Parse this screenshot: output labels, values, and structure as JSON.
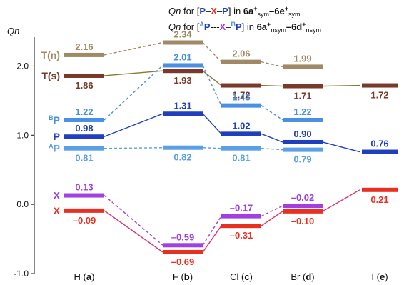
{
  "chart_data": {
    "type": "line",
    "title_line1": {
      "pre": "Qn",
      "mid": " for [",
      "a": "P",
      "b": "–",
      "c": "X",
      "d": "–",
      "e": "P",
      "post": "] in ",
      "bold1": "6a",
      "sup1": "+",
      "sub1": "sym",
      "dash": "–",
      "bold2": "6e",
      "sup2": "+",
      "sub2": "sym"
    },
    "title_line2": {
      "pre": "Qn",
      "mid": " for [",
      "sup_a": "A",
      "a": "P",
      "b": "---",
      "c": "X",
      "d": "–",
      "sup_e": "B",
      "e": "P",
      "post": "] in ",
      "bold1": "6a",
      "sup1": "+",
      "sub1": "nsym",
      "dash": "–",
      "bold2": "6d",
      "sup2": "+",
      "sub2": "nsym"
    },
    "ylabel": "Qn",
    "ylim": [
      -1.0,
      2.5
    ],
    "yticks": [
      -1.0,
      0.0,
      1.0,
      2.0
    ],
    "ytick_labels": [
      "-1.0",
      "0.0",
      "1.0",
      "2.0"
    ],
    "categories": [
      {
        "name": "H",
        "letter": "a"
      },
      {
        "name": "F",
        "letter": "b"
      },
      {
        "name": "Cl",
        "letter": "c"
      },
      {
        "name": "Br",
        "letter": "d"
      },
      {
        "name": "I",
        "letter": "e"
      }
    ],
    "series": [
      {
        "name": "T(n)",
        "color": "#a08a66",
        "dashed": true,
        "values": [
          2.16,
          2.34,
          2.06,
          1.99,
          null
        ],
        "labels": [
          "2.16",
          "2.34",
          "2.06",
          "1.99",
          null
        ],
        "label_pos": "above"
      },
      {
        "name": "T(s)",
        "color": "#7a3a2a",
        "dashed": false,
        "values": [
          1.86,
          1.93,
          1.72,
          1.71,
          1.72
        ],
        "labels": [
          "1.86",
          "1.93",
          "1.72",
          "1.71",
          "1.72"
        ],
        "label_pos": "below",
        "line_color": "#8a7a30"
      },
      {
        "name": "P",
        "sup": "B",
        "color": "#4a90e2",
        "dashed": true,
        "values": [
          1.22,
          2.01,
          1.43,
          1.22,
          null
        ],
        "labels": [
          "1.22",
          "2.01",
          "1.43",
          "1.22",
          null
        ],
        "label_pos": "above"
      },
      {
        "name": "P",
        "color": "#1f3fbf",
        "dashed": false,
        "values": [
          0.98,
          1.31,
          1.02,
          0.9,
          0.76
        ],
        "labels": [
          "0.98",
          "1.31",
          "1.02",
          "0.90",
          "0.76"
        ],
        "label_pos": "above"
      },
      {
        "name": "P",
        "sup": "A",
        "color": "#5aa0e8",
        "dashed": true,
        "values": [
          0.81,
          0.82,
          0.81,
          0.79,
          null
        ],
        "labels": [
          "0.81",
          "0.82",
          "0.81",
          "0.79",
          null
        ],
        "label_pos": "below"
      },
      {
        "name": "X",
        "color": "#a040e0",
        "dashed": true,
        "values": [
          0.13,
          -0.59,
          -0.17,
          -0.02,
          null
        ],
        "labels": [
          "0.13",
          "–0.59",
          "–0.17",
          "–0.02",
          null
        ],
        "label_pos": "above"
      },
      {
        "name": "X",
        "color": "#e83020",
        "dashed": false,
        "values": [
          -0.09,
          -0.69,
          -0.31,
          -0.1,
          0.21
        ],
        "labels": [
          "–0.09",
          "–0.69",
          "–0.31",
          "–0.10",
          "0.21"
        ],
        "label_pos": "below",
        "line_color": "#e0306a"
      }
    ]
  }
}
